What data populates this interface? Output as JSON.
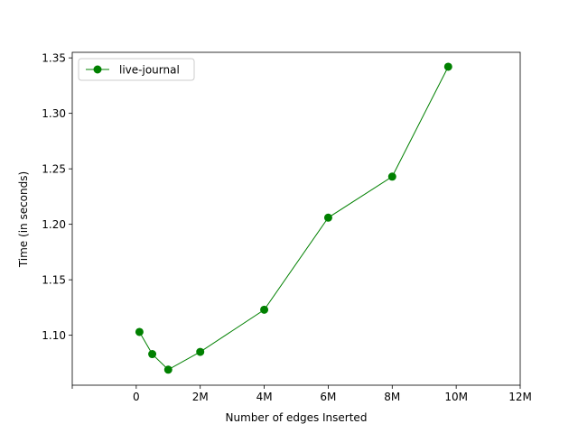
{
  "chart_data": {
    "type": "line",
    "title": "",
    "xlabel": "Number of edges Inserted",
    "ylabel": "Time (in seconds)",
    "xlim": [
      -2000000,
      12000000
    ],
    "ylim": [
      1.055,
      1.355
    ],
    "x_ticks": [
      {
        "value": -2000000,
        "label": ""
      },
      {
        "value": 0,
        "label": "0"
      },
      {
        "value": 2000000,
        "label": "2M"
      },
      {
        "value": 4000000,
        "label": "4M"
      },
      {
        "value": 6000000,
        "label": "6M"
      },
      {
        "value": 8000000,
        "label": "8M"
      },
      {
        "value": 10000000,
        "label": "10M"
      },
      {
        "value": 12000000,
        "label": "12M"
      }
    ],
    "y_ticks": [
      {
        "value": 1.1,
        "label": "1.10"
      },
      {
        "value": 1.15,
        "label": "1.15"
      },
      {
        "value": 1.2,
        "label": "1.20"
      },
      {
        "value": 1.25,
        "label": "1.25"
      },
      {
        "value": 1.3,
        "label": "1.30"
      },
      {
        "value": 1.35,
        "label": "1.35"
      }
    ],
    "grid": false,
    "legend_position": "top-left",
    "series": [
      {
        "name": "live-journal",
        "color": "#008000",
        "marker": "circle",
        "x": [
          100000,
          500000,
          1000000,
          2000000,
          4000000,
          6000000,
          8000000,
          9750000
        ],
        "y": [
          1.103,
          1.083,
          1.069,
          1.085,
          1.123,
          1.206,
          1.243,
          1.342
        ]
      }
    ]
  }
}
